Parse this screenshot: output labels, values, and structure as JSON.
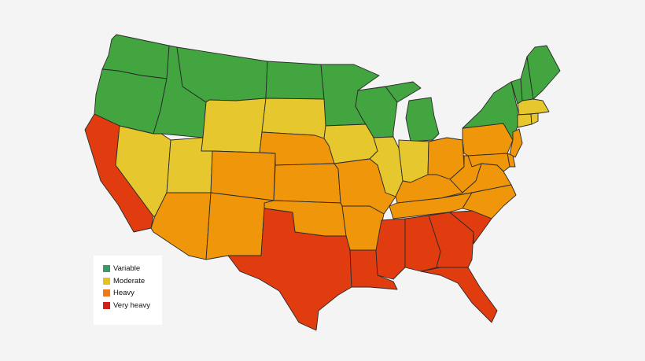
{
  "map": {
    "legend": [
      {
        "key": "variable",
        "label": "Variable",
        "swatch_color": "#3a9a6a"
      },
      {
        "key": "moderate",
        "label": "Moderate",
        "swatch_color": "#e8c020"
      },
      {
        "key": "heavy",
        "label": "Heavy",
        "swatch_color": "#f07a18"
      },
      {
        "key": "very_heavy",
        "label": "Very heavy",
        "swatch_color": "#d0201c"
      }
    ],
    "fill_colors": {
      "variable": "#42a540",
      "moderate": "#e6c82e",
      "heavy": "#f0960a",
      "very_heavy": "#e03c10"
    },
    "regions": {
      "WA": "variable",
      "OR": "variable",
      "ID": "variable",
      "MT": "variable",
      "ND": "variable",
      "MN": "variable",
      "WI": "variable",
      "MI": "variable",
      "NY": "variable",
      "VT": "variable",
      "NH": "variable",
      "ME": "variable",
      "CA": "very_heavy",
      "TX": "very_heavy",
      "LA": "very_heavy",
      "MS": "very_heavy",
      "AL": "very_heavy",
      "GA": "very_heavy",
      "FL": "very_heavy",
      "SC": "very_heavy",
      "NV": "moderate",
      "UT": "moderate",
      "WY": "moderate",
      "SD": "moderate",
      "IA": "moderate",
      "IL": "moderate",
      "IN": "moderate",
      "MA": "moderate",
      "CT": "moderate",
      "RI": "moderate",
      "AZ": "heavy",
      "NM": "heavy",
      "CO": "heavy",
      "NE": "heavy",
      "KS": "heavy",
      "OK": "heavy",
      "MO": "heavy",
      "AR": "heavy",
      "TN": "heavy",
      "KY": "heavy",
      "OH": "heavy",
      "WV": "heavy",
      "VA": "heavy",
      "NC": "heavy",
      "PA": "heavy",
      "NJ": "heavy",
      "DE": "heavy",
      "MD": "heavy"
    }
  }
}
